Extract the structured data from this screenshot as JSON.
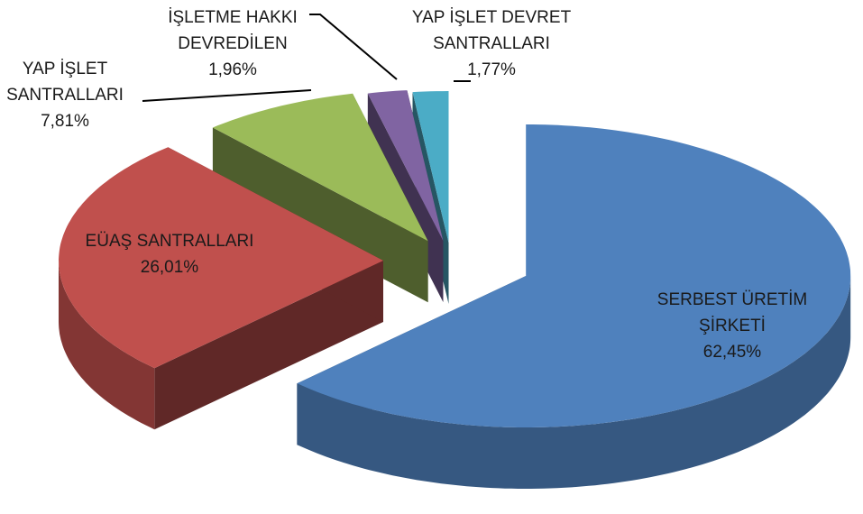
{
  "chart_data": {
    "type": "pie3d",
    "categories": [
      "SERBEST ÜRETİM ŞİRKETİ",
      "EÜAŞ SANTRALLARI",
      "YAP İŞLET SANTRALLARI",
      "İŞLETME HAKKI DEVREDİLEN",
      "YAP İŞLET DEVRET SANTRALLARI"
    ],
    "values": [
      62.45,
      26.01,
      7.81,
      1.96,
      1.77
    ],
    "value_labels": [
      "62,45%",
      "26,01%",
      "7,81%",
      "1,96%",
      "1,77%"
    ],
    "colors": [
      "#4f81bd",
      "#c0504d",
      "#9bbb59",
      "#8064a2",
      "#4bacc6"
    ]
  }
}
